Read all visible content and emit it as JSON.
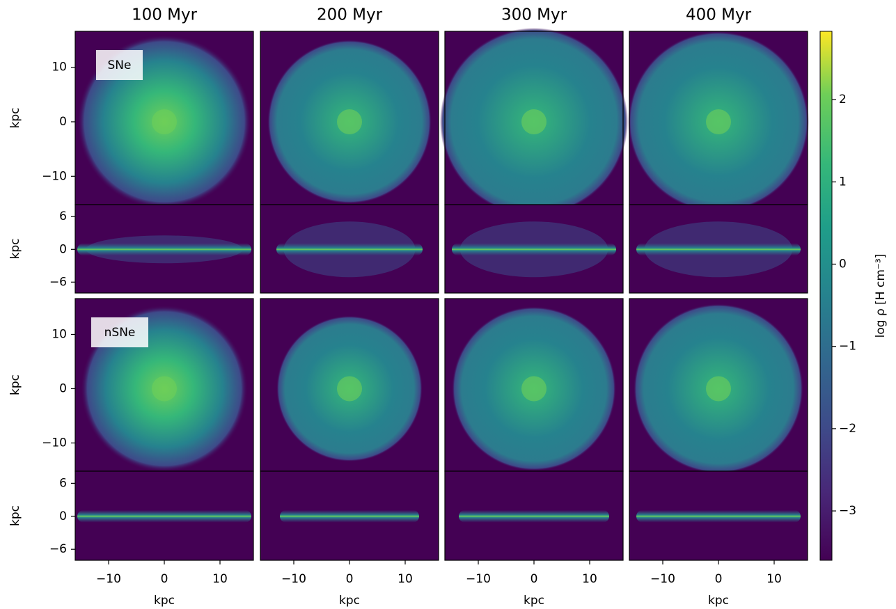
{
  "columns": [
    "100 Myr",
    "200 Myr",
    "300 Myr",
    "400 Myr"
  ],
  "rows": [
    {
      "label": "SNe"
    },
    {
      "label": "nSNe"
    }
  ],
  "face_on": {
    "ylabel": "kpc",
    "ylim": [
      -15.2,
      16.6
    ],
    "yticks": [
      {
        "value": -10,
        "label": "−10"
      },
      0,
      10
    ]
  },
  "edge_on": {
    "ylabel": "kpc",
    "ylim": [
      -8,
      8.2
    ],
    "yticks": [
      {
        "value": -6,
        "label": "−6"
      },
      0,
      6
    ]
  },
  "xaxis": {
    "label": "kpc",
    "lim": [
      -16,
      16
    ],
    "ticks": [
      {
        "value": -10,
        "label": "−10"
      },
      0,
      10
    ]
  },
  "colorbar": {
    "label": "log ρ [H cm⁻³]",
    "lim": [
      -3.6,
      2.83
    ],
    "colormap": "viridis",
    "ticks": [
      {
        "value": -3,
        "label": "−3"
      },
      {
        "value": -2,
        "label": "−2"
      },
      {
        "value": -1,
        "label": "−1"
      },
      0,
      1,
      2
    ]
  }
}
